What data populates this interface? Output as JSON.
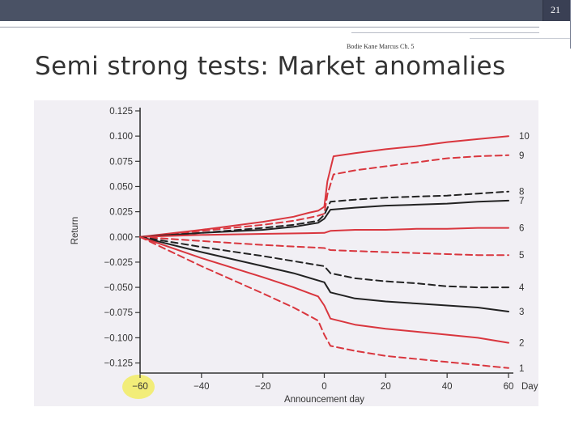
{
  "slide": {
    "page_number": "21",
    "citation": "Bodie Kane Marcus Ch. 5",
    "title": "Semi strong tests: Market anomalies"
  },
  "chart_data": {
    "type": "line",
    "title": "",
    "xlabel": "Announcement day",
    "ylabel": "Return",
    "x_unit_label": "Days",
    "xlim": [
      -60,
      60
    ],
    "ylim": [
      -0.135,
      0.125
    ],
    "x_ticks": [
      -60,
      -40,
      -20,
      0,
      20,
      40,
      60
    ],
    "x_tick_labels": [
      "−60",
      "−40",
      "−20",
      "0",
      "20",
      "40",
      "60"
    ],
    "y_ticks": [
      0.125,
      0.1,
      0.075,
      0.05,
      0.025,
      0.0,
      -0.025,
      -0.05,
      -0.075,
      -0.1,
      -0.125
    ],
    "y_tick_labels": [
      "0.125",
      "0.100",
      "0.075",
      "0.050",
      "0.025",
      "0.000",
      "−0.025",
      "−0.050",
      "−0.075",
      "−0.100",
      "−0.125"
    ],
    "highlight_x": -60,
    "colors": {
      "red": "#d9363e",
      "black": "#222222",
      "highlight": "#f2ec5a",
      "axis": "#333333"
    },
    "series": [
      {
        "name": "10",
        "color": "red",
        "dashed": false,
        "x": [
          -60,
          -40,
          -20,
          -10,
          -5,
          -2,
          0,
          1,
          3,
          10,
          20,
          30,
          40,
          50,
          60
        ],
        "y": [
          0,
          0.007,
          0.015,
          0.02,
          0.024,
          0.026,
          0.03,
          0.055,
          0.08,
          0.083,
          0.087,
          0.09,
          0.094,
          0.097,
          0.1
        ]
      },
      {
        "name": "9",
        "color": "red",
        "dashed": true,
        "x": [
          -60,
          -40,
          -20,
          -10,
          -5,
          -2,
          0,
          1,
          3,
          10,
          20,
          30,
          40,
          50,
          60
        ],
        "y": [
          0,
          0.006,
          0.012,
          0.016,
          0.019,
          0.021,
          0.023,
          0.042,
          0.062,
          0.066,
          0.07,
          0.074,
          0.078,
          0.08,
          0.081
        ]
      },
      {
        "name": "8",
        "color": "black",
        "dashed": true,
        "x": [
          -60,
          -40,
          -20,
          -10,
          -2,
          0,
          2,
          10,
          20,
          30,
          40,
          50,
          60
        ],
        "y": [
          0,
          0.004,
          0.009,
          0.012,
          0.016,
          0.022,
          0.035,
          0.037,
          0.039,
          0.04,
          0.041,
          0.043,
          0.045
        ]
      },
      {
        "name": "7",
        "color": "black",
        "dashed": false,
        "x": [
          -60,
          -40,
          -20,
          -10,
          -2,
          0,
          2,
          10,
          20,
          30,
          40,
          50,
          60
        ],
        "y": [
          0,
          0.004,
          0.007,
          0.01,
          0.014,
          0.018,
          0.027,
          0.029,
          0.031,
          0.032,
          0.033,
          0.035,
          0.036
        ]
      },
      {
        "name": "6",
        "color": "red",
        "dashed": false,
        "x": [
          -60,
          -40,
          -20,
          0,
          2,
          10,
          20,
          30,
          40,
          50,
          60
        ],
        "y": [
          0,
          0.002,
          0.003,
          0.004,
          0.006,
          0.007,
          0.007,
          0.008,
          0.008,
          0.009,
          0.009
        ]
      },
      {
        "name": "5",
        "color": "red",
        "dashed": true,
        "x": [
          -60,
          -40,
          -20,
          0,
          2,
          10,
          20,
          30,
          40,
          50,
          60
        ],
        "y": [
          0,
          -0.004,
          -0.008,
          -0.011,
          -0.013,
          -0.014,
          -0.015,
          -0.016,
          -0.017,
          -0.018,
          -0.018
        ]
      },
      {
        "name": "4",
        "color": "black",
        "dashed": true,
        "x": [
          -60,
          -40,
          -20,
          -10,
          0,
          2,
          10,
          20,
          30,
          40,
          50,
          60
        ],
        "y": [
          0,
          -0.01,
          -0.019,
          -0.024,
          -0.029,
          -0.036,
          -0.041,
          -0.044,
          -0.046,
          -0.049,
          -0.05,
          -0.05
        ]
      },
      {
        "name": "3",
        "color": "black",
        "dashed": false,
        "x": [
          -60,
          -40,
          -20,
          -10,
          0,
          2,
          10,
          20,
          30,
          40,
          50,
          60
        ],
        "y": [
          0,
          -0.015,
          -0.029,
          -0.036,
          -0.045,
          -0.055,
          -0.061,
          -0.064,
          -0.066,
          -0.068,
          -0.07,
          -0.074
        ]
      },
      {
        "name": "2",
        "color": "red",
        "dashed": false,
        "x": [
          -60,
          -40,
          -20,
          -10,
          -2,
          0,
          2,
          10,
          20,
          30,
          40,
          50,
          60
        ],
        "y": [
          0,
          -0.021,
          -0.04,
          -0.05,
          -0.059,
          -0.068,
          -0.081,
          -0.087,
          -0.091,
          -0.094,
          -0.097,
          -0.1,
          -0.105
        ]
      },
      {
        "name": "1",
        "color": "red",
        "dashed": true,
        "x": [
          -60,
          -40,
          -20,
          -10,
          -2,
          0,
          2,
          10,
          20,
          30,
          40,
          50,
          60
        ],
        "y": [
          0,
          -0.029,
          -0.056,
          -0.07,
          -0.083,
          -0.097,
          -0.108,
          -0.113,
          -0.118,
          -0.121,
          -0.124,
          -0.127,
          -0.13
        ]
      }
    ]
  }
}
